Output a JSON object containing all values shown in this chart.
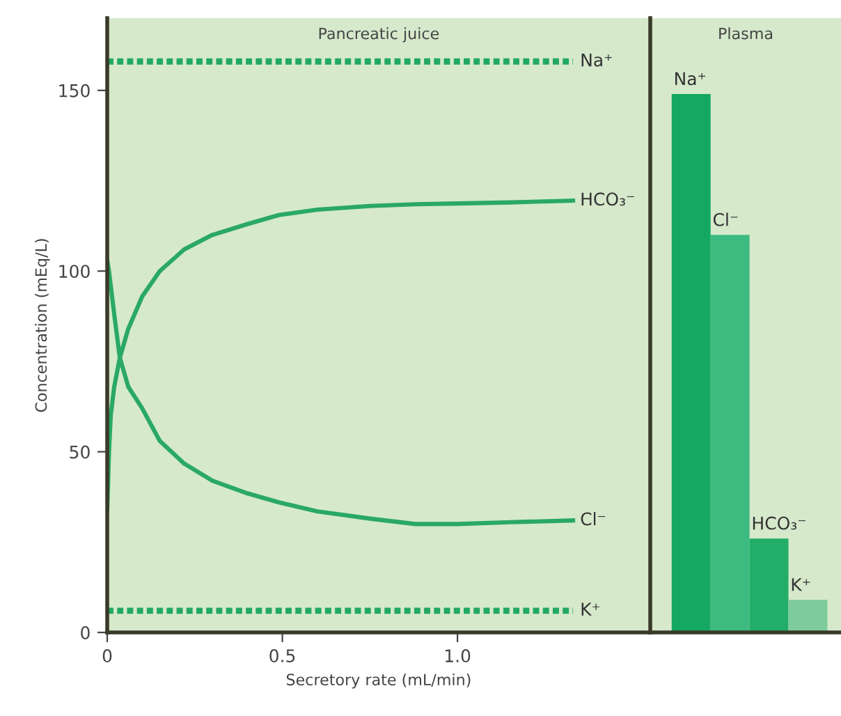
{
  "chart_data": [
    {
      "type": "line",
      "title": "Pancreatic juice",
      "xlabel": "Secretory rate (mL/min)",
      "ylabel": "Concentration (mEq/L)",
      "xlim": [
        0,
        1.55
      ],
      "xticks": [
        0,
        0.5,
        {
          "value": 1.0,
          "label": "1.0"
        }
      ],
      "ylim": [
        0,
        170
      ],
      "yticks": [
        0,
        50,
        100,
        150
      ],
      "grid": false,
      "legend": false,
      "marker": "none",
      "series": [
        {
          "name": "Na⁺",
          "color": "#22a862",
          "line_style": "dotted",
          "x": [
            0,
            1.33
          ],
          "values": [
            158,
            158
          ]
        },
        {
          "name": "HCO₃⁻",
          "color": "#2aa866",
          "line_style": "solid",
          "x": [
            0,
            0.005,
            0.01,
            0.02,
            0.036,
            0.06,
            0.1,
            0.15,
            0.22,
            0.3,
            0.4,
            0.49,
            0.6,
            0.75,
            0.88,
            1.0,
            1.15,
            1.33
          ],
          "values": [
            34,
            50,
            60,
            68,
            76,
            84,
            93,
            100,
            106,
            110,
            113,
            115.5,
            117,
            118,
            118.5,
            118.7,
            119,
            119.5
          ]
        },
        {
          "name": "Cl⁻",
          "color": "#2aa866",
          "line_style": "solid",
          "x": [
            0,
            0.005,
            0.01,
            0.02,
            0.036,
            0.06,
            0.1,
            0.15,
            0.22,
            0.3,
            0.4,
            0.49,
            0.6,
            0.75,
            0.88,
            1.0,
            1.15,
            1.33
          ],
          "values": [
            103,
            100,
            96,
            88,
            76,
            68,
            62,
            53,
            46.7,
            42,
            38.5,
            36,
            33.5,
            31.5,
            30,
            30,
            30.5,
            31
          ]
        },
        {
          "name": "K⁺",
          "color": "#22a862",
          "line_style": "dotted",
          "x": [
            0,
            1.33
          ],
          "values": [
            6,
            6
          ]
        }
      ]
    },
    {
      "type": "bar",
      "title": "Plasma",
      "categories": [
        "Na⁺",
        "Cl⁻",
        "HCO₃⁻",
        "K⁺"
      ],
      "values": [
        149,
        110,
        26,
        9
      ],
      "colors": [
        "#14a862",
        "#3dba80",
        "#22ad68",
        "#7ecb9b"
      ],
      "ylim": [
        0,
        170
      ],
      "tick_labels": "x"
    }
  ]
}
